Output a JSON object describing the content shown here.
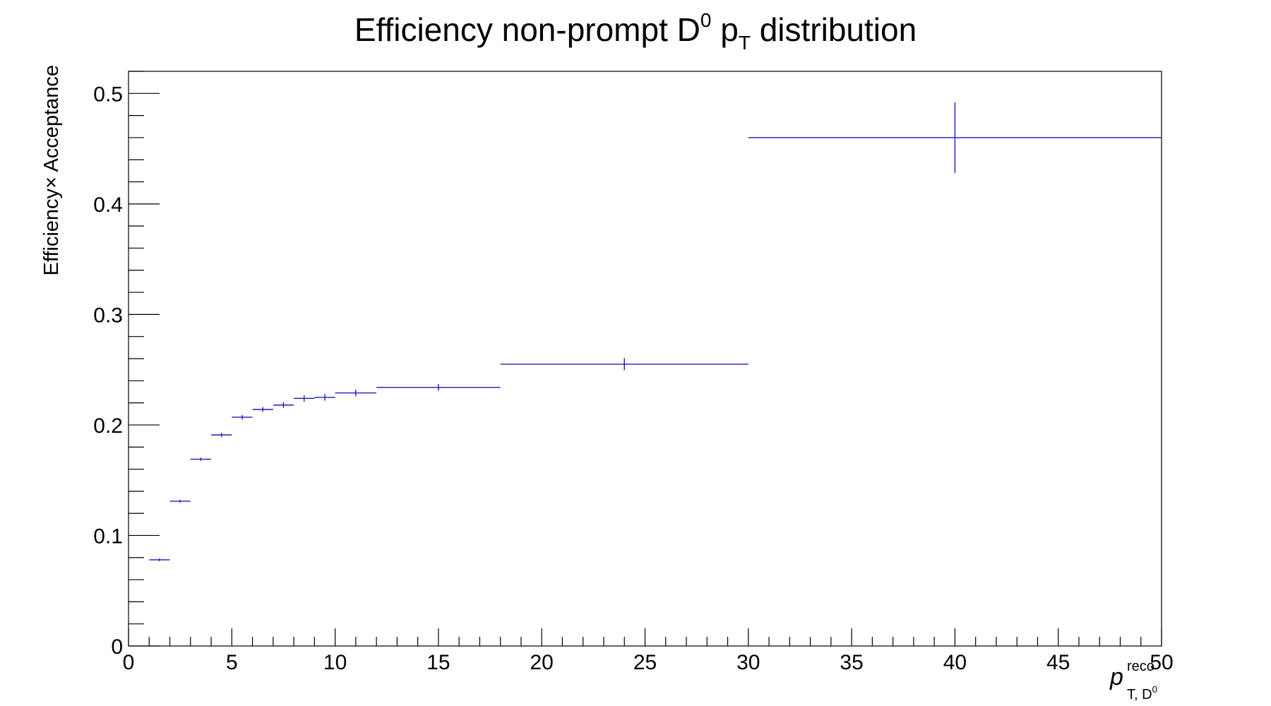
{
  "colors": {
    "series": "#1c1cbd",
    "axis": "#000000",
    "background": "#ffffff"
  },
  "chart_data": {
    "type": "scatter",
    "style": "histogram-error-bars",
    "title": {
      "main": "Efficiency non-prompt D",
      "main_sup": "0",
      "mid": " p",
      "mid_sub": "T",
      "tail": " distribution"
    },
    "ylabel": "Efficiency× Acceptance",
    "xlabel": {
      "base": "p",
      "sup": "reco",
      "sub": "T, D",
      "sub_sup": "0"
    },
    "xlim": [
      0,
      50
    ],
    "ylim": [
      0,
      0.52
    ],
    "x_ticks": [
      0,
      5,
      10,
      15,
      20,
      25,
      30,
      35,
      40,
      45,
      50
    ],
    "x_tick_labels": [
      "0",
      "5",
      "10",
      "15",
      "20",
      "25",
      "30",
      "35",
      "40",
      "45",
      "50"
    ],
    "y_ticks": [
      0,
      0.1,
      0.2,
      0.3,
      0.4,
      0.5
    ],
    "y_tick_labels": [
      "0",
      "0.1",
      "0.2",
      "0.3",
      "0.4",
      "0.5"
    ],
    "grid": false,
    "legend": "none",
    "points": [
      {
        "x_low": 1,
        "x_high": 2,
        "x": 1.5,
        "y": 0.078,
        "err": 0.001
      },
      {
        "x_low": 2,
        "x_high": 3,
        "x": 2.5,
        "y": 0.131,
        "err": 0.0012
      },
      {
        "x_low": 3,
        "x_high": 4,
        "x": 3.5,
        "y": 0.169,
        "err": 0.0015
      },
      {
        "x_low": 4,
        "x_high": 5,
        "x": 4.5,
        "y": 0.191,
        "err": 0.0018
      },
      {
        "x_low": 5,
        "x_high": 6,
        "x": 5.5,
        "y": 0.207,
        "err": 0.002
      },
      {
        "x_low": 6,
        "x_high": 7,
        "x": 6.5,
        "y": 0.214,
        "err": 0.0022
      },
      {
        "x_low": 7,
        "x_high": 8,
        "x": 7.5,
        "y": 0.218,
        "err": 0.0025
      },
      {
        "x_low": 8,
        "x_high": 9,
        "x": 8.5,
        "y": 0.224,
        "err": 0.0028
      },
      {
        "x_low": 9,
        "x_high": 10,
        "x": 9.5,
        "y": 0.225,
        "err": 0.003
      },
      {
        "x_low": 10,
        "x_high": 12,
        "x": 11,
        "y": 0.229,
        "err": 0.003
      },
      {
        "x_low": 12,
        "x_high": 18,
        "x": 15,
        "y": 0.234,
        "err": 0.003
      },
      {
        "x_low": 18,
        "x_high": 30,
        "x": 24,
        "y": 0.255,
        "err": 0.0055
      },
      {
        "x_low": 30,
        "x_high": 50,
        "x": 40,
        "y": 0.46,
        "err": 0.032
      }
    ]
  }
}
